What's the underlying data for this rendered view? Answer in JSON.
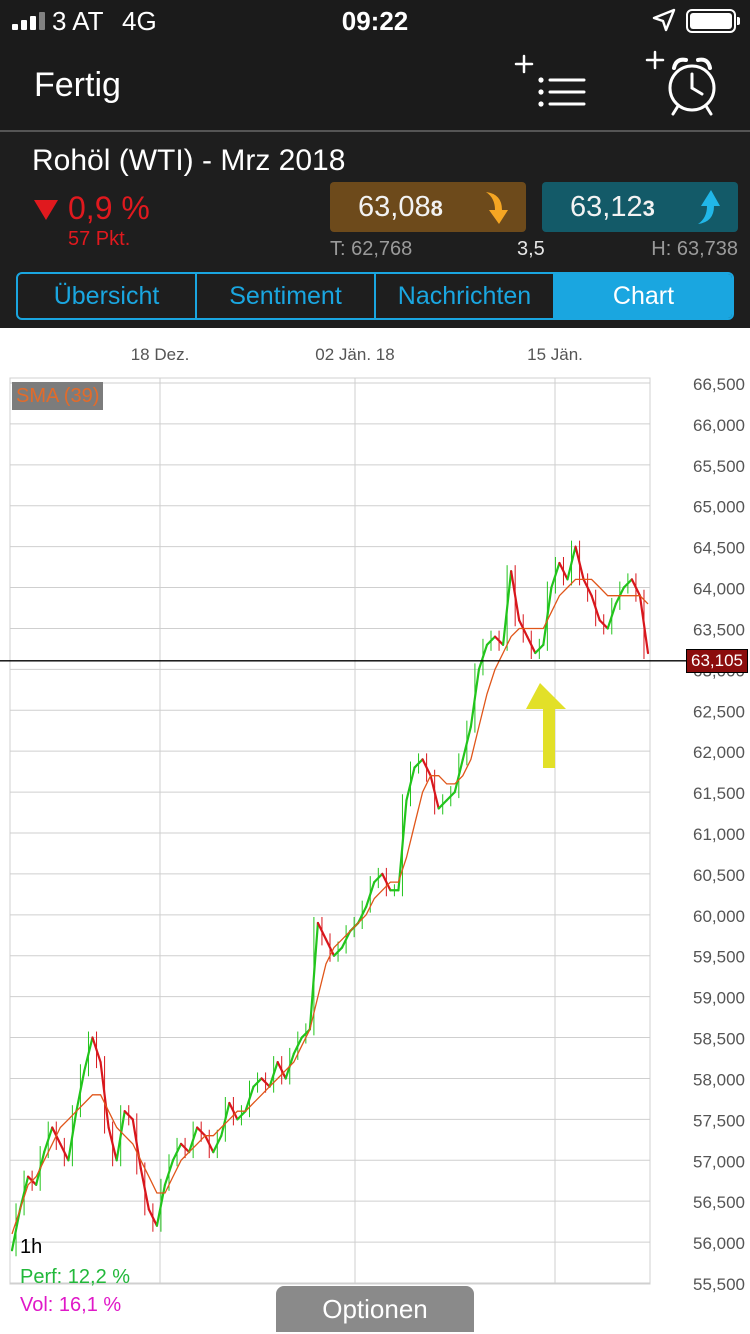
{
  "status_bar": {
    "carrier": "3 AT",
    "network": "4G",
    "time": "09:22"
  },
  "navbar": {
    "done_label": "Fertig",
    "list_icon": "add-watchlist-icon",
    "alarm_icon": "add-alarm-icon"
  },
  "instrument": {
    "title": "Rohöl (WTI) - Mrz 2018",
    "change_percent": "0,9 %",
    "change_points": "57 Pkt.",
    "bid_main": "63,08",
    "bid_small": "8",
    "ask_main": "63,12",
    "ask_small": "3",
    "low": "T: 62,768",
    "spread": "3,5",
    "high": "H: 63,738",
    "colors": {
      "down": "#e0191e",
      "bid_bg": "#6d4a1b",
      "ask_bg": "#135a68",
      "accent": "#1aa6e0"
    }
  },
  "tabs": [
    {
      "label": "Übersicht",
      "active": false
    },
    {
      "label": "Sentiment",
      "active": false
    },
    {
      "label": "Nachrichten",
      "active": false
    },
    {
      "label": "Chart",
      "active": true
    }
  ],
  "chart": {
    "sma_label": "SMA (39)",
    "timeframe": "1h",
    "perf": "Perf: 12,2 %",
    "vol": "Vol: 16,1 %",
    "options_label": "Optionen",
    "current_price_label": "63,105",
    "annotation": "yellow-arrow-icon"
  },
  "chart_data": {
    "type": "line",
    "x_tick_labels": [
      "18 Dez.",
      "02 Jän. 18",
      "15 Jän."
    ],
    "y_tick_labels": [
      "66,500",
      "66,000",
      "65,500",
      "65,000",
      "64,500",
      "64,000",
      "63,500",
      "63,000",
      "62,500",
      "62,000",
      "61,500",
      "61,000",
      "60,500",
      "60,000",
      "59,500",
      "59,000",
      "58,500",
      "58,000",
      "57,500",
      "57,000",
      "56,500",
      "56,000",
      "55,500"
    ],
    "ylim": [
      55.5,
      66.5
    ],
    "current_price": 63.105,
    "grid": true,
    "series": [
      {
        "name": "",
        "values": [
          55.9,
          56.4,
          56.8,
          56.7,
          57.1,
          57.4,
          57.2,
          57.0,
          57.6,
          58.1,
          58.5,
          58.2,
          57.4,
          57.0,
          57.6,
          57.5,
          56.9,
          56.4,
          56.2,
          56.7,
          57.0,
          57.2,
          57.1,
          57.4,
          57.3,
          57.1,
          57.3,
          57.7,
          57.5,
          57.6,
          57.9,
          58.0,
          57.9,
          58.2,
          58.0,
          58.3,
          58.5,
          58.6,
          59.9,
          59.7,
          59.5,
          59.6,
          59.8,
          59.9,
          60.1,
          60.4,
          60.5,
          60.3,
          60.3,
          61.4,
          61.8,
          61.9,
          61.7,
          61.3,
          61.4,
          61.5,
          61.9,
          62.3,
          63.0,
          63.3,
          63.4,
          63.3,
          64.2,
          63.6,
          63.4,
          63.2,
          63.3,
          64.0,
          64.3,
          64.1,
          64.5,
          64.1,
          63.9,
          63.6,
          63.5,
          63.8,
          64.0,
          64.1,
          63.9,
          63.2
        ]
      },
      {
        "name": "SMA (39)",
        "values": [
          56.1,
          56.4,
          56.7,
          56.8,
          57.0,
          57.2,
          57.4,
          57.5,
          57.6,
          57.7,
          57.8,
          57.8,
          57.6,
          57.4,
          57.3,
          57.2,
          57.0,
          56.8,
          56.6,
          56.6,
          56.8,
          57.0,
          57.1,
          57.2,
          57.3,
          57.3,
          57.4,
          57.5,
          57.6,
          57.6,
          57.7,
          57.8,
          57.9,
          58.0,
          58.1,
          58.2,
          58.4,
          58.6,
          59.0,
          59.4,
          59.6,
          59.7,
          59.8,
          59.9,
          60.0,
          60.2,
          60.3,
          60.4,
          60.4,
          60.7,
          61.1,
          61.5,
          61.7,
          61.7,
          61.6,
          61.6,
          61.7,
          61.9,
          62.3,
          62.7,
          63.0,
          63.2,
          63.4,
          63.5,
          63.5,
          63.5,
          63.5,
          63.7,
          63.9,
          64.0,
          64.1,
          64.1,
          64.1,
          64.0,
          63.9,
          63.9,
          63.9,
          63.9,
          63.9,
          63.8
        ]
      }
    ],
    "colors": {
      "up": "#22c41c",
      "down": "#d8161c",
      "sma": "#e0561a"
    }
  }
}
